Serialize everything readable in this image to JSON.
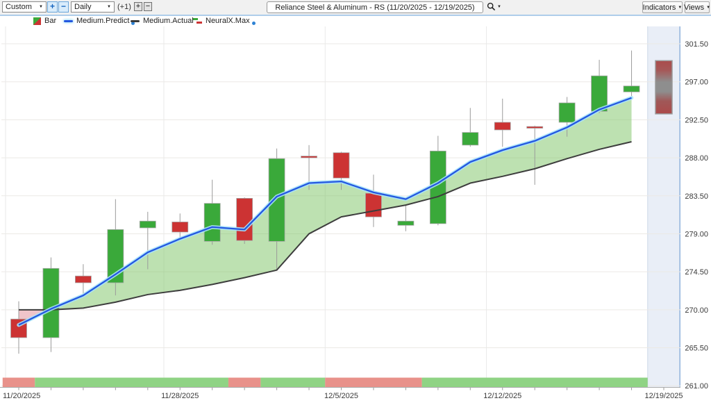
{
  "toolbar": {
    "range_select": "Custom",
    "period_select": "Daily",
    "zoom_in_label": "+",
    "zoom_out_label": "−",
    "offset_label": "(+1)",
    "bar_plus_label": "+",
    "bar_minus_label": "−",
    "title": "Reliance Steel & Aluminum - RS (11/20/2025 - 12/19/2025)",
    "indicators_button": "Indicators",
    "views_button": "Views"
  },
  "icons": {
    "dropdown_arrow": "▼"
  },
  "legend": {
    "items": [
      {
        "label": "Bar"
      },
      {
        "label": "Medium.Predict"
      },
      {
        "label": "Medium.Actual"
      },
      {
        "label": "NeuralX.Max"
      }
    ]
  },
  "chart_data": {
    "type": "candlestick+line",
    "symbol": "Reliance Steel & Aluminum - RS",
    "date_range": "11/20/2025 - 12/19/2025",
    "num_slots": 21,
    "y_tick_labels": [
      "301.50",
      "297.00",
      "292.50",
      "288.00",
      "283.50",
      "279.00",
      "274.50",
      "270.00",
      "265.50",
      "261.00"
    ],
    "ylim": [
      261.0,
      301.5
    ],
    "x_ticks": [
      {
        "slot": 0,
        "label": "11/20/2025"
      },
      {
        "slot": 5,
        "label": "11/28/2025"
      },
      {
        "slot": 10,
        "label": "12/5/2025"
      },
      {
        "slot": 15,
        "label": "12/12/2025"
      },
      {
        "slot": 20,
        "label": "12/19/2025"
      }
    ],
    "candles": [
      {
        "o": 268.9,
        "h": 271.0,
        "l": 264.8,
        "c": 266.7
      },
      {
        "o": 266.7,
        "h": 276.2,
        "l": 265.0,
        "c": 274.9
      },
      {
        "o": 274.0,
        "h": 275.4,
        "l": 271.6,
        "c": 273.2
      },
      {
        "o": 273.2,
        "h": 283.1,
        "l": 271.7,
        "c": 279.5
      },
      {
        "o": 279.7,
        "h": 281.6,
        "l": 274.8,
        "c": 280.5
      },
      {
        "o": 280.4,
        "h": 281.4,
        "l": 278.5,
        "c": 279.2
      },
      {
        "o": 278.1,
        "h": 285.4,
        "l": 277.7,
        "c": 282.6
      },
      {
        "o": 283.2,
        "h": 283.3,
        "l": 277.8,
        "c": 278.2
      },
      {
        "o": 278.1,
        "h": 289.1,
        "l": 274.7,
        "c": 287.9
      },
      {
        "o": 288.2,
        "h": 289.5,
        "l": 284.2,
        "c": 288.0
      },
      {
        "o": 288.6,
        "h": 288.7,
        "l": 284.2,
        "c": 285.6
      },
      {
        "o": 283.8,
        "h": 286.0,
        "l": 279.8,
        "c": 281.0
      },
      {
        "o": 280.0,
        "h": 282.4,
        "l": 279.3,
        "c": 280.5
      },
      {
        "o": 280.2,
        "h": 290.6,
        "l": 280.0,
        "c": 288.8
      },
      {
        "o": 289.5,
        "h": 293.9,
        "l": 289.3,
        "c": 291.0
      },
      {
        "o": 292.2,
        "h": 295.0,
        "l": 289.3,
        "c": 291.3
      },
      {
        "o": 291.7,
        "h": 291.8,
        "l": 284.8,
        "c": 291.5
      },
      {
        "o": 292.2,
        "h": 295.2,
        "l": 290.5,
        "c": 294.5
      },
      {
        "o": 293.5,
        "h": 299.6,
        "l": 293.3,
        "c": 297.7
      },
      {
        "o": 295.8,
        "h": 300.7,
        "l": 295.3,
        "c": 296.5
      }
    ],
    "series": [
      {
        "name": "Medium.Predict",
        "values": [
          268.2,
          270.1,
          271.7,
          274.2,
          276.8,
          278.4,
          279.8,
          279.5,
          283.4,
          285.0,
          285.2,
          283.9,
          283.1,
          285.0,
          287.5,
          288.9,
          290.0,
          291.6,
          293.7,
          295.1
        ]
      },
      {
        "name": "Medium.Actual",
        "values": [
          270.0,
          270.0,
          270.2,
          270.9,
          271.8,
          272.3,
          273.0,
          273.8,
          274.7,
          279.0,
          281.0,
          281.7,
          282.4,
          283.4,
          285.0,
          285.8,
          286.7,
          287.9,
          289.0,
          289.9
        ]
      }
    ],
    "neuralx_strip": [
      {
        "from": 0,
        "to": 1,
        "signal": "bearish"
      },
      {
        "from": 1,
        "to": 7,
        "signal": "bullish"
      },
      {
        "from": 7,
        "to": 8,
        "signal": "bearish"
      },
      {
        "from": 8,
        "to": 10,
        "signal": "bullish"
      },
      {
        "from": 10,
        "to": 13,
        "signal": "bearish"
      },
      {
        "from": 13,
        "to": 20,
        "signal": "bullish"
      }
    ],
    "forecast": {
      "slot": 20,
      "range_high": 299.5,
      "range_low": 293.2
    }
  },
  "colors": {
    "candle_up": "#3aa93a",
    "candle_down": "#cc3333",
    "candle_stroke": "#a6a6a6",
    "wick": "#9a9a9a",
    "predict_line": "#2457e0",
    "predict_glow": "#a9e3f9",
    "actual_line": "#3d3d3d",
    "fill_above": "rgba(124,196,100,0.50)",
    "fill_below": "rgba(228,148,158,0.55)",
    "strip_bullish": "#8fd384",
    "strip_bearish": "#e8918a",
    "forecast_bg": "#e9eef7",
    "forecast_border": "#8fb2dc",
    "forecast_border_left": "#ccd7e8",
    "gradient_stops": [
      [
        0,
        "#aa4c4c"
      ],
      [
        0.18,
        "#a65858"
      ],
      [
        0.4,
        "#8e8e8e"
      ],
      [
        0.58,
        "#8e8e8e"
      ],
      [
        0.76,
        "#a05858"
      ],
      [
        1,
        "#ab4a4a"
      ]
    ],
    "gradient_stroke": "#9a9a9a",
    "grid_h": "#ebe9e5",
    "grid_v": "#e9e9e9",
    "axis": "#aaaaaa",
    "tick": "#999999"
  }
}
